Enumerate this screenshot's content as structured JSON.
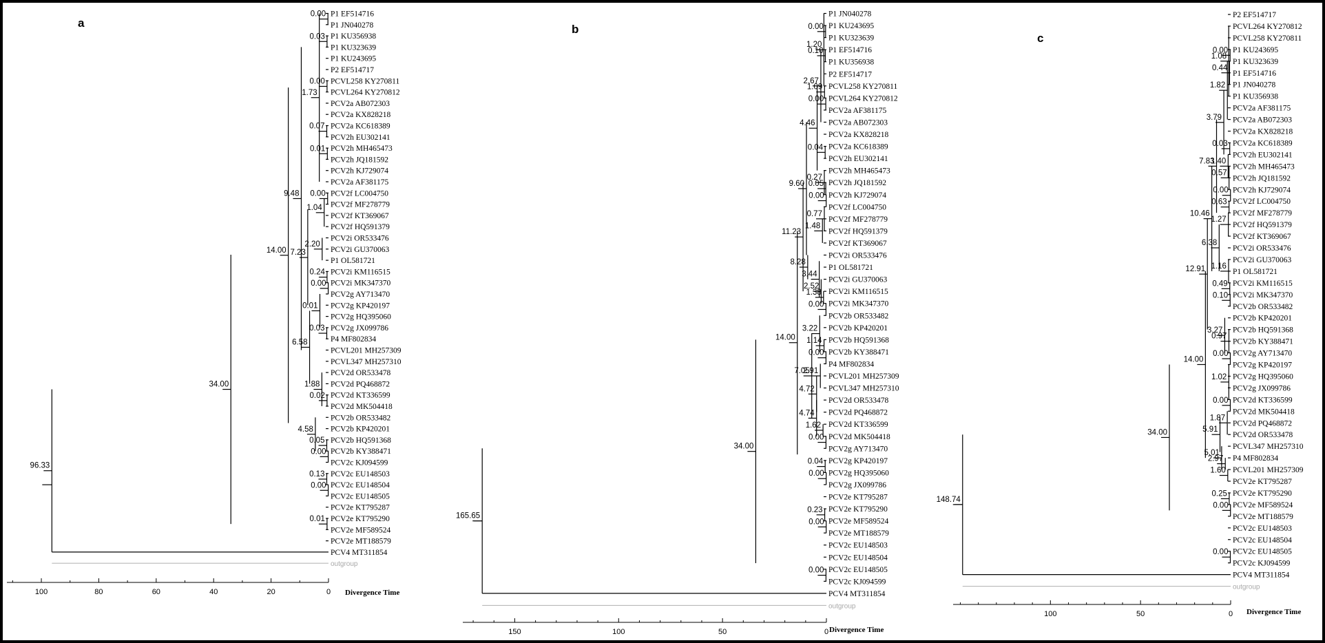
{
  "axis_label": "Divergence Time",
  "panels": [
    {
      "id": "a",
      "label": "a",
      "root_age": 96.33,
      "ticks": [
        100,
        80,
        60,
        40,
        20,
        0
      ],
      "leaves": [
        "P1 EF514716",
        "P1 JN040278",
        "P1 KU356938",
        "P1 KU323639",
        "P1 KU243695",
        "P2 EF514717",
        "PCVL258 KY270811",
        "PCVL264 KY270812",
        "PCV2a AB072303",
        "PCV2a KX828218",
        "PCV2a KC618389",
        "PCV2h EU302141",
        "PCV2h MH465473",
        "PCV2h JQ181592",
        "PCV2h KJ729074",
        "PCV2a AF381175",
        "PCV2f LC004750",
        "PCV2f MF278779",
        "PCV2f KT369067",
        "PCV2f HQ591379",
        "PCV2i OR533476",
        "PCV2i GU370063",
        "P1 OL581721",
        "PCV2i KM116515",
        "PCV2i MK347370",
        "PCV2g AY713470",
        "PCV2g KP420197",
        "PCV2g HQ395060",
        "PCV2g JX099786",
        "P4 MF802834",
        "PCVL201 MH257309",
        "PCVL347 MH257310",
        "PCV2d OR533478",
        "PCV2d PQ468872",
        "PCV2d KT336599",
        "PCV2d MK504418",
        "PCV2b OR533482",
        "PCV2b KP420201",
        "PCV2b HQ591368",
        "PCV2b KY388471",
        "PCV2c KJ094599",
        "PCV2c EU148503",
        "PCV2c EU148504",
        "PCV2c EU148505",
        "PCV2e KT795287",
        "PCV2e KT795290",
        "PCV2e MF589524",
        "PCV2e MT188579",
        "PCV4 MT311854",
        "outgroup"
      ],
      "nodes": [
        {
          "label": "0.00",
          "age": 0.2,
          "lo": 0,
          "hi": 1
        },
        {
          "label": "0.03",
          "age": 0.5,
          "lo": 2,
          "hi": 3
        },
        {
          "label": "0.00",
          "age": 0.5,
          "lo": 6,
          "hi": 7
        },
        {
          "label": "1.73",
          "age": 3.2,
          "lo": 0,
          "hi": 15
        },
        {
          "label": "0.07",
          "age": 0.6,
          "lo": 10,
          "hi": 11
        },
        {
          "label": "0.01",
          "age": 0.4,
          "lo": 12,
          "hi": 13
        },
        {
          "label": "9.48",
          "age": 9.48,
          "lo": 3,
          "hi": 30
        },
        {
          "label": "0.00",
          "age": 0.3,
          "lo": 16,
          "hi": 17
        },
        {
          "label": "1.04",
          "age": 1.5,
          "lo": 16.5,
          "hi": 19
        },
        {
          "label": "7.23",
          "age": 7.23,
          "lo": 17.5,
          "hi": 26
        },
        {
          "label": "2.20",
          "age": 2.2,
          "lo": 20,
          "hi": 22
        },
        {
          "label": "0.24",
          "age": 0.5,
          "lo": 23,
          "hi": 24
        },
        {
          "label": "0.00",
          "age": 0.1,
          "lo": 24,
          "hi": 25
        },
        {
          "label": "14.00",
          "age": 14.0,
          "lo": 6.6,
          "hi": 36.5
        },
        {
          "label": "0.01",
          "age": 3.0,
          "lo": 25,
          "hi": 28
        },
        {
          "label": "0.03",
          "age": 0.6,
          "lo": 28,
          "hi": 29
        },
        {
          "label": "6.58",
          "age": 6.58,
          "lo": 26.5,
          "hi": 33
        },
        {
          "label": "1.88",
          "age": 2.3,
          "lo": 32,
          "hi": 35
        },
        {
          "label": "0.02",
          "age": 0.5,
          "lo": 34,
          "hi": 35
        },
        {
          "label": "4.58",
          "age": 4.58,
          "lo": 36,
          "hi": 39
        },
        {
          "label": "0.05",
          "age": 0.6,
          "lo": 38,
          "hi": 39
        },
        {
          "label": "0.00",
          "age": 0.1,
          "lo": 39,
          "hi": 40
        },
        {
          "label": "34.00",
          "age": 34.0,
          "lo": 21.5,
          "hi": 45.5
        },
        {
          "label": "0.13",
          "age": 0.6,
          "lo": 41,
          "hi": 42
        },
        {
          "label": "0.00",
          "age": 0.1,
          "lo": 42,
          "hi": 43
        },
        {
          "label": "0.01",
          "age": 0.5,
          "lo": 45,
          "hi": 46
        },
        {
          "label": "96.33",
          "age": 96.33,
          "lo": 33.5,
          "hi": 48
        }
      ]
    },
    {
      "id": "b",
      "label": "b",
      "root_age": 165.65,
      "ticks": [
        150,
        100,
        50,
        0
      ],
      "leaves": [
        "P1 JN040278",
        "P1 KU243695",
        "P1 KU323639",
        "P1 EF514716",
        "P1 KU356938",
        "P2 EF514717",
        "PCVL258 KY270811",
        "PCVL264 KY270812",
        "PCV2a AF381175",
        "PCV2a AB072303",
        "PCV2a KX828218",
        "PCV2a KC618389",
        "PCV2h EU302141",
        "PCV2h MH465473",
        "PCV2h JQ181592",
        "PCV2h KJ729074",
        "PCV2f LC004750",
        "PCV2f MF278779",
        "PCV2f HQ591379",
        "PCV2f KT369067",
        "PCV2i OR533476",
        "P1 OL581721",
        "PCV2i GU370063",
        "PCV2i KM116515",
        "PCV2i MK347370",
        "PCV2b OR533482",
        "PCV2b KP420201",
        "PCV2b HQ591368",
        "PCV2b KY388471",
        "P4 MF802834",
        "PCVL201 MH257309",
        "PCVL347 MH257310",
        "PCV2d OR533478",
        "PCV2d PQ468872",
        "PCV2d KT336599",
        "PCV2d MK504418",
        "PCV2g AY713470",
        "PCV2g KP420197",
        "PCV2g HQ395060",
        "PCV2g JX099786",
        "PCV2e KT795287",
        "PCV2e KT795290",
        "PCV2e MF589524",
        "PCV2e MT188579",
        "PCV2c EU148503",
        "PCV2c EU148504",
        "PCV2c EU148505",
        "PCV2c KJ094599",
        "PCV4 MT311854",
        "outgroup"
      ],
      "nodes": [
        {
          "label": "0.00",
          "age": 0.4,
          "lo": 1,
          "hi": 2
        },
        {
          "label": "0.10",
          "age": 0.5,
          "lo": 3,
          "hi": 4
        },
        {
          "label": "1.20",
          "age": 1.2,
          "lo": 0,
          "hi": 6
        },
        {
          "label": "1.09",
          "age": 0.9,
          "lo": 6,
          "hi": 7
        },
        {
          "label": "0.00",
          "age": 0.3,
          "lo": 7,
          "hi": 8
        },
        {
          "label": "2.67",
          "age": 2.67,
          "lo": 3,
          "hi": 9
        },
        {
          "label": "4.46",
          "age": 4.46,
          "lo": 6,
          "hi": 13
        },
        {
          "label": "0.04",
          "age": 0.6,
          "lo": 11,
          "hi": 12
        },
        {
          "label": "9.60",
          "age": 9.6,
          "lo": 9,
          "hi": 20
        },
        {
          "label": "0.27",
          "age": 1.0,
          "lo": 13,
          "hi": 15
        },
        {
          "label": "0.05",
          "age": 0.3,
          "lo": 14,
          "hi": 15
        },
        {
          "label": "0.00",
          "age": 0.1,
          "lo": 15,
          "hi": 16
        },
        {
          "label": "0.77",
          "age": 1.0,
          "lo": 16,
          "hi": 18
        },
        {
          "label": "1.48",
          "age": 1.9,
          "lo": 17,
          "hi": 19
        },
        {
          "label": "11.23",
          "age": 11.23,
          "lo": 14,
          "hi": 23
        },
        {
          "label": "8.28",
          "age": 9.0,
          "lo": 20,
          "hi": 22
        },
        {
          "label": "3.44",
          "age": 3.44,
          "lo": 20.5,
          "hi": 23.5
        },
        {
          "label": "2.52",
          "age": 2.52,
          "lo": 22,
          "hi": 24
        },
        {
          "label": "1.38",
          "age": 1.38,
          "lo": 23,
          "hi": 24
        },
        {
          "label": "0.00",
          "age": 0.2,
          "lo": 24,
          "hi": 25
        },
        {
          "label": "14.00",
          "age": 14.0,
          "lo": 18,
          "hi": 36.5
        },
        {
          "label": "3.22",
          "age": 3.22,
          "lo": 25,
          "hi": 28
        },
        {
          "label": "1.14",
          "age": 1.14,
          "lo": 27,
          "hi": 28
        },
        {
          "label": "0.00",
          "age": 0.2,
          "lo": 28,
          "hi": 29
        },
        {
          "label": "2.91",
          "age": 2.91,
          "lo": 29,
          "hi": 31
        },
        {
          "label": "4.72",
          "age": 4.72,
          "lo": 30,
          "hi": 33
        },
        {
          "label": "7.05",
          "age": 7.05,
          "lo": 26.5,
          "hi": 33.5
        },
        {
          "label": "4.74",
          "age": 4.74,
          "lo": 32,
          "hi": 35
        },
        {
          "label": "1.62",
          "age": 1.62,
          "lo": 34,
          "hi": 35
        },
        {
          "label": "0.00",
          "age": 0.2,
          "lo": 35,
          "hi": 36
        },
        {
          "label": "34.00",
          "age": 34.0,
          "lo": 27,
          "hi": 45.5
        },
        {
          "label": "0.04",
          "age": 0.6,
          "lo": 37,
          "hi": 38
        },
        {
          "label": "0.00",
          "age": 0.1,
          "lo": 38,
          "hi": 39
        },
        {
          "label": "0.23",
          "age": 0.8,
          "lo": 41,
          "hi": 42
        },
        {
          "label": "0.00",
          "age": 0.1,
          "lo": 42,
          "hi": 43
        },
        {
          "label": "0.00",
          "age": 0.2,
          "lo": 46,
          "hi": 47
        },
        {
          "label": "165.65",
          "age": 165.65,
          "lo": 36,
          "hi": 48
        }
      ]
    },
    {
      "id": "c",
      "label": "c",
      "root_age": 148.74,
      "ticks": [
        100,
        50,
        0
      ],
      "leaves": [
        "P2 EF514717",
        "PCVL264 KY270812",
        "PCVL258 KY270811",
        "P1 KU243695",
        "P1 KU323639",
        "P1 EF514716",
        "P1 JN040278",
        "P1 KU356938",
        "PCV2a AF381175",
        "PCV2a AB072303",
        "PCV2a KX828218",
        "PCV2a KC618389",
        "PCV2h EU302141",
        "PCV2h MH465473",
        "PCV2h JQ181592",
        "PCV2h KJ729074",
        "PCV2f LC004750",
        "PCV2f MF278779",
        "PCV2f HQ591379",
        "PCV2f KT369067",
        "PCV2i OR533476",
        "PCV2i GU370063",
        "P1 OL581721",
        "PCV2i KM116515",
        "PCV2i MK347370",
        "PCV2b OR533482",
        "PCV2b KP420201",
        "PCV2b HQ591368",
        "PCV2b KY388471",
        "PCV2g AY713470",
        "PCV2g KP420197",
        "PCV2g HQ395060",
        "PCV2g JX099786",
        "PCV2d KT336599",
        "PCV2d MK504418",
        "PCV2d PQ468872",
        "PCV2d OR533478",
        "PCVL347 MH257310",
        "P4 MF802834",
        "PCVL201 MH257309",
        "PCV2e KT795287",
        "PCV2e KT795290",
        "PCV2e MF589524",
        "PCV2e MT188579",
        "PCV2c EU148503",
        "PCV2c EU148504",
        "PCV2c EU148505",
        "PCV2c KJ094599",
        "PCV4 MT311854",
        "outgroup"
      ],
      "nodes": [
        {
          "label": "0.00",
          "age": 0.3,
          "lo": 3,
          "hi": 4
        },
        {
          "label": "0.44",
          "age": 0.6,
          "lo": 4,
          "hi": 6
        },
        {
          "label": "1.08",
          "age": 1.08,
          "lo": 1,
          "hi": 7
        },
        {
          "label": "1.82",
          "age": 1.82,
          "lo": 4,
          "hi": 9
        },
        {
          "label": "3.79",
          "age": 3.79,
          "lo": 6.5,
          "hi": 12
        },
        {
          "label": "0.03",
          "age": 0.5,
          "lo": 11,
          "hi": 12
        },
        {
          "label": "1.40",
          "age": 1.4,
          "lo": 12,
          "hi": 14
        },
        {
          "label": "0.57",
          "age": 0.9,
          "lo": 13,
          "hi": 15
        },
        {
          "label": "7.83",
          "age": 7.83,
          "lo": 9,
          "hi": 17
        },
        {
          "label": "0.00",
          "age": 0.1,
          "lo": 15,
          "hi": 16
        },
        {
          "label": "0.63",
          "age": 0.9,
          "lo": 16,
          "hi": 17
        },
        {
          "label": "1.27",
          "age": 1.27,
          "lo": 17,
          "hi": 19
        },
        {
          "label": "10.46",
          "age": 10.46,
          "lo": 13,
          "hi": 22
        },
        {
          "label": "6.38",
          "age": 6.38,
          "lo": 18,
          "hi": 22
        },
        {
          "label": "1.16",
          "age": 1.16,
          "lo": 21,
          "hi": 23
        },
        {
          "label": "0.49",
          "age": 0.49,
          "lo": 23,
          "hi": 24
        },
        {
          "label": "0.10",
          "age": 0.3,
          "lo": 24,
          "hi": 25
        },
        {
          "label": "12.91",
          "age": 12.91,
          "lo": 17.5,
          "hi": 27
        },
        {
          "label": "14.00",
          "age": 14.0,
          "lo": 22,
          "hi": 38
        },
        {
          "label": "3.27",
          "age": 3.27,
          "lo": 26,
          "hi": 29
        },
        {
          "label": "0.97",
          "age": 0.97,
          "lo": 27,
          "hi": 29
        },
        {
          "label": "0.00",
          "age": 0.2,
          "lo": 29,
          "hi": 30
        },
        {
          "label": "1.02",
          "age": 1.02,
          "lo": 30,
          "hi": 33
        },
        {
          "label": "0.00",
          "age": 0.2,
          "lo": 33,
          "hi": 34
        },
        {
          "label": "1.87",
          "age": 1.87,
          "lo": 34,
          "hi": 36
        },
        {
          "label": "5.91",
          "age": 5.91,
          "lo": 34.5,
          "hi": 37.5
        },
        {
          "label": "5.01",
          "age": 5.01,
          "lo": 37,
          "hi": 39
        },
        {
          "label": "2.97",
          "age": 2.97,
          "lo": 38,
          "hi": 39
        },
        {
          "label": "1.60",
          "age": 1.6,
          "lo": 39,
          "hi": 40
        },
        {
          "label": "34.00",
          "age": 34.0,
          "lo": 30,
          "hi": 42.5
        },
        {
          "label": "0.25",
          "age": 0.8,
          "lo": 41,
          "hi": 42
        },
        {
          "label": "0.00",
          "age": 0.1,
          "lo": 42,
          "hi": 43
        },
        {
          "label": "0.00",
          "age": 0.2,
          "lo": 46,
          "hi": 47
        },
        {
          "label": "148.74",
          "age": 148.74,
          "lo": 36,
          "hi": 48
        }
      ]
    }
  ]
}
